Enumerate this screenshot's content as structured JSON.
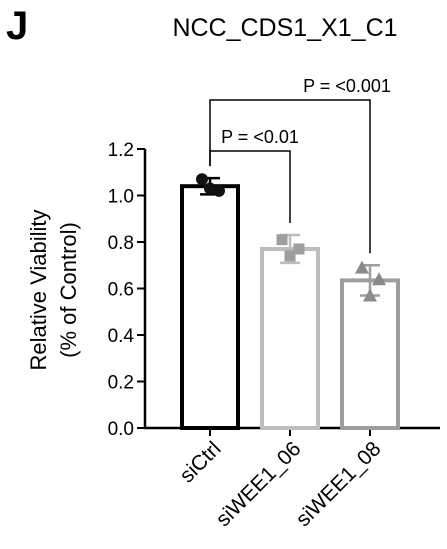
{
  "panel_letter": "J",
  "chart_data": {
    "type": "bar",
    "title": "NCC_CDS1_X1_C1",
    "ylabel_line1": "Relative Viability",
    "ylabel_line2": "(% of Control)",
    "ylim": [
      0,
      1.2
    ],
    "yticks": [
      "0.0",
      "0.2",
      "0.4",
      "0.6",
      "0.8",
      "1.0",
      "1.2"
    ],
    "categories": [
      "siCtrl",
      "siWEE1_06",
      "siWEE1_08"
    ],
    "values": [
      1.04,
      0.77,
      0.635
    ],
    "error": [
      0.035,
      0.06,
      0.065
    ],
    "bar_colors": [
      "#000000",
      "#bdbdbd",
      "#9e9e9e"
    ],
    "marker_colors": [
      "#111111",
      "#9e9e9e",
      "#8a8a8a"
    ],
    "markers": [
      "circle",
      "square",
      "triangle"
    ],
    "points": [
      [
        1.07,
        1.02,
        1.03
      ],
      [
        0.81,
        0.77,
        0.74
      ],
      [
        0.69,
        0.64,
        0.57
      ]
    ],
    "annotations": [
      {
        "from": 0,
        "to": 1,
        "text": "P = <0.01"
      },
      {
        "from": 0,
        "to": 2,
        "text": "P = <0.001"
      }
    ]
  }
}
